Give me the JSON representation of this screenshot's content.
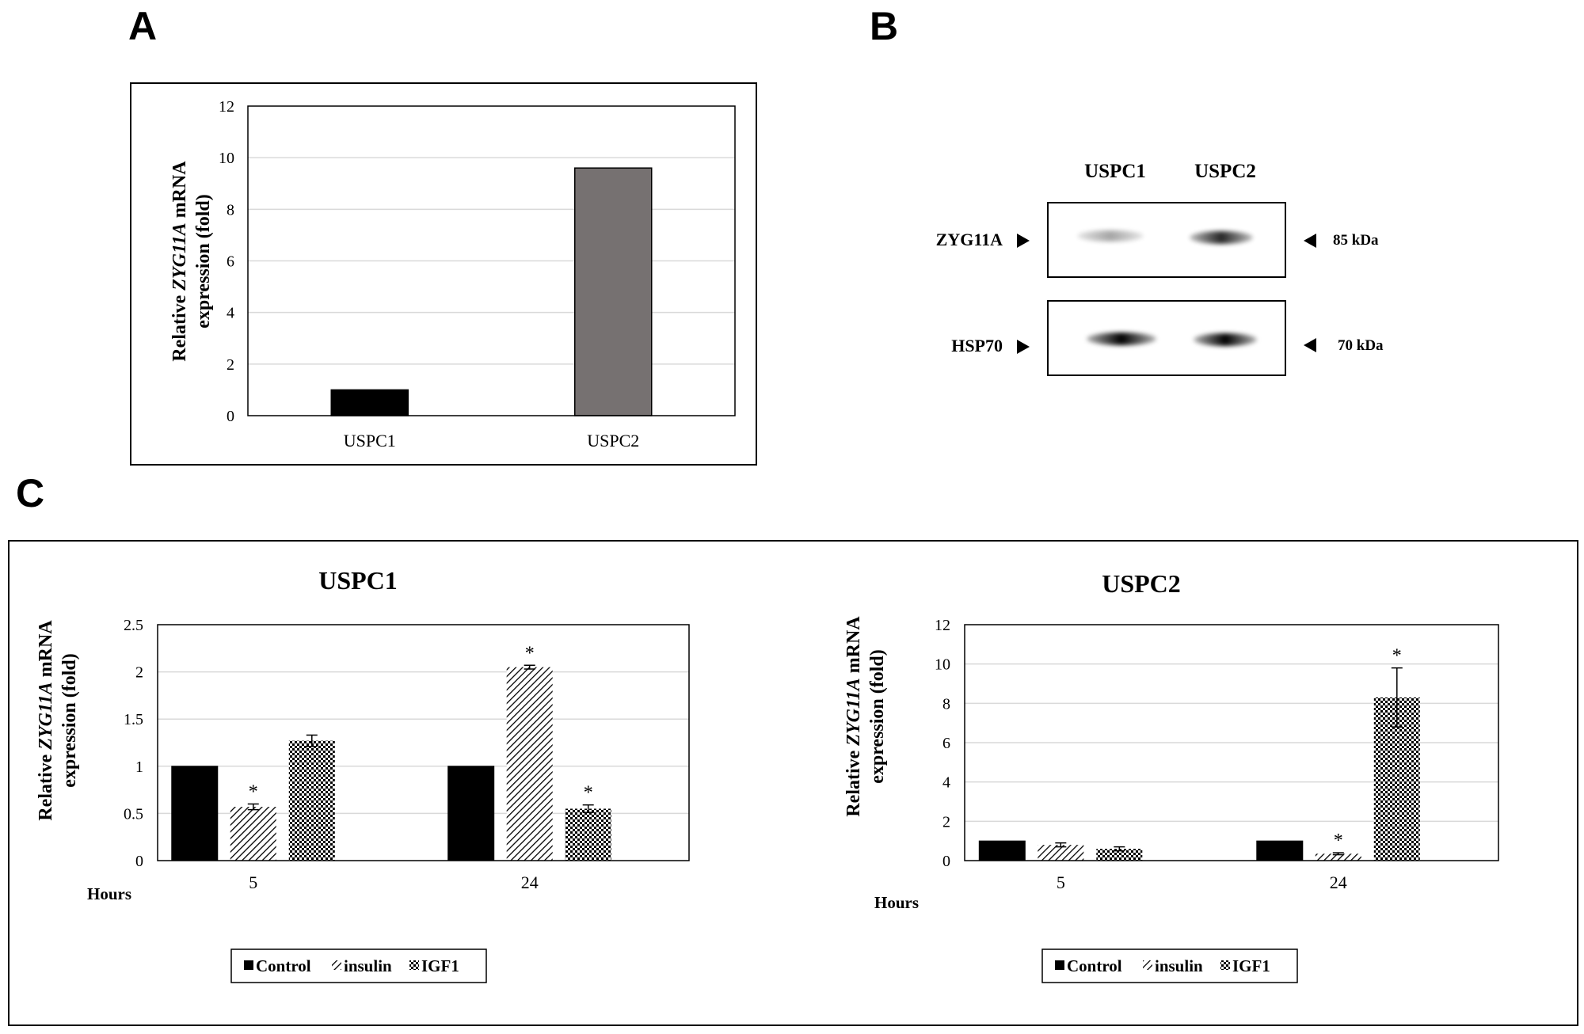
{
  "panels": {
    "a": "A",
    "b": "B",
    "c": "C"
  },
  "colors": {
    "control": "#000000",
    "uspc2_bar": "#767171",
    "grid": "#d9d9d9",
    "frame": "#000000"
  },
  "chart_data": [
    {
      "id": "A",
      "type": "bar",
      "categories": [
        "USPC1",
        "USPC2"
      ],
      "values": [
        1.0,
        9.6
      ],
      "ylabel_parts": [
        "Relative ",
        "ZYG11A",
        " mRNA"
      ],
      "ylabel_line2": "expression (fold)",
      "ylim": [
        0,
        12
      ],
      "yticks": [
        "0",
        "2",
        "4",
        "6",
        "8",
        "10",
        "12"
      ],
      "grid": true
    },
    {
      "id": "B",
      "type": "western-blot",
      "lanes": [
        "USPC1",
        "USPC2"
      ],
      "rows": [
        {
          "protein": "ZYG11A",
          "size": "85 kDa",
          "intensity": [
            0.35,
            0.85
          ]
        },
        {
          "protein": "HSP70",
          "size": "70 kDa",
          "intensity": [
            1.0,
            1.0
          ]
        }
      ]
    },
    {
      "id": "C1",
      "type": "bar",
      "title": "USPC1",
      "categories": [
        "5",
        "24"
      ],
      "xlabel": "Hours",
      "ylabel_parts": [
        "Relative ",
        "ZYG11A",
        " mRNA"
      ],
      "ylabel_line2": "expression (fold)",
      "ylim": [
        0,
        2.5
      ],
      "yticks": [
        "0",
        "0.5",
        "1",
        "1.5",
        "2",
        "2.5"
      ],
      "grid": true,
      "series": [
        {
          "name": "Control",
          "values": [
            1.0,
            1.0
          ],
          "errors": [
            0,
            0
          ],
          "significant": [
            false,
            false
          ],
          "pattern": "solid"
        },
        {
          "name": "insulin",
          "values": [
            0.57,
            2.05
          ],
          "errors": [
            0.03,
            0.02
          ],
          "significant": [
            true,
            true
          ],
          "pattern": "diagonal"
        },
        {
          "name": "IGF1",
          "values": [
            1.27,
            0.55
          ],
          "errors": [
            0.06,
            0.04
          ],
          "significant": [
            false,
            true
          ],
          "pattern": "checker"
        }
      ],
      "star": "*",
      "legend": "bottom"
    },
    {
      "id": "C2",
      "type": "bar",
      "title": "USPC2",
      "categories": [
        "5",
        "24"
      ],
      "xlabel": "Hours",
      "ylabel_parts": [
        "Relative ",
        "ZYG11A",
        " mRNA"
      ],
      "ylabel_line2": "expression (fold)",
      "ylim": [
        0,
        12
      ],
      "yticks": [
        "0",
        "2",
        "4",
        "6",
        "8",
        "10",
        "12"
      ],
      "grid": true,
      "series": [
        {
          "name": "Control",
          "values": [
            1.0,
            1.0
          ],
          "errors": [
            0,
            0
          ],
          "significant": [
            false,
            false
          ],
          "pattern": "solid"
        },
        {
          "name": "insulin",
          "values": [
            0.8,
            0.35
          ],
          "errors": [
            0.1,
            0.05
          ],
          "significant": [
            false,
            true
          ],
          "pattern": "diagonal"
        },
        {
          "name": "IGF1",
          "values": [
            0.6,
            8.3
          ],
          "errors": [
            0.1,
            1.5
          ],
          "significant": [
            false,
            true
          ],
          "pattern": "checker"
        }
      ],
      "star": "*",
      "legend": "bottom"
    }
  ]
}
